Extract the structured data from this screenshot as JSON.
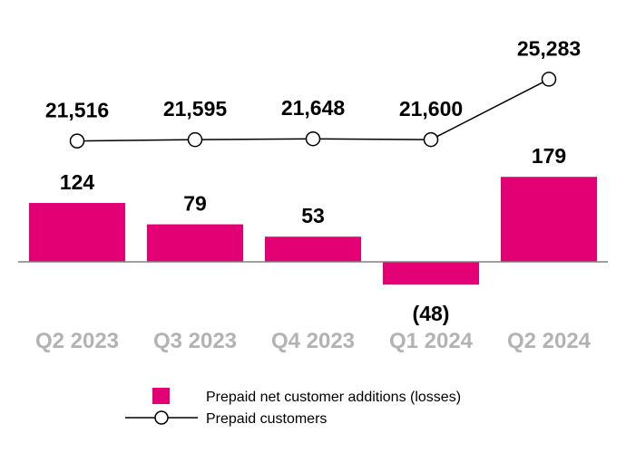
{
  "chart_data": {
    "type": "bar",
    "categories": [
      "Q2 2023",
      "Q3 2023",
      "Q4 2023",
      "Q1 2024",
      "Q2 2024"
    ],
    "series": [
      {
        "name": "Prepaid net customer additions (losses)",
        "type": "bar",
        "values": [
          124,
          79,
          53,
          -48,
          179
        ],
        "labels": [
          "124",
          "79",
          "53",
          "(48)",
          "179"
        ],
        "color": "#e20074"
      },
      {
        "name": "Prepaid customers",
        "type": "line",
        "values": [
          21516,
          21595,
          21648,
          21600,
          25283
        ],
        "labels": [
          "21,516",
          "21,595",
          "21,648",
          "21,600",
          "25,283"
        ],
        "color": "#000000"
      }
    ],
    "legend_position": "bottom",
    "grid": false
  }
}
